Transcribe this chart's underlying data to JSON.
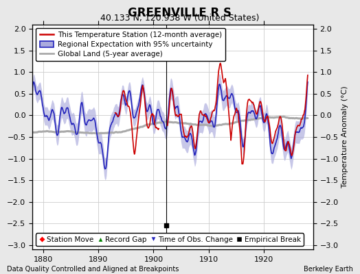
{
  "title": "GREENVILLE R S",
  "subtitle": "40.133 N, 120.938 W (United States)",
  "xlabel_left": "Data Quality Controlled and Aligned at Breakpoints",
  "xlabel_right": "Berkeley Earth",
  "ylabel": "Temperature Anomaly (°C)",
  "xlim": [
    1878,
    1929
  ],
  "ylim": [
    -3.1,
    2.1
  ],
  "yticks": [
    -3,
    -2.5,
    -2,
    -1.5,
    -1,
    -0.5,
    0,
    0.5,
    1,
    1.5,
    2
  ],
  "xticks": [
    1880,
    1890,
    1900,
    1910,
    1920
  ],
  "bg_color": "#e8e8e8",
  "plot_bg_color": "#ffffff",
  "grid_color": "#cccccc",
  "regional_color": "#2222bb",
  "regional_fill_color": "#aaaadd",
  "station_color": "#cc0000",
  "global_color": "#aaaaaa",
  "global_linewidth": 2.2,
  "station_linewidth": 1.2,
  "regional_linewidth": 1.2,
  "empirical_break_x": 1902.3,
  "empirical_break_y": -2.55,
  "title_fontsize": 12,
  "subtitle_fontsize": 9,
  "axis_fontsize": 8,
  "ylabel_fontsize": 8,
  "legend_fontsize": 7.5
}
